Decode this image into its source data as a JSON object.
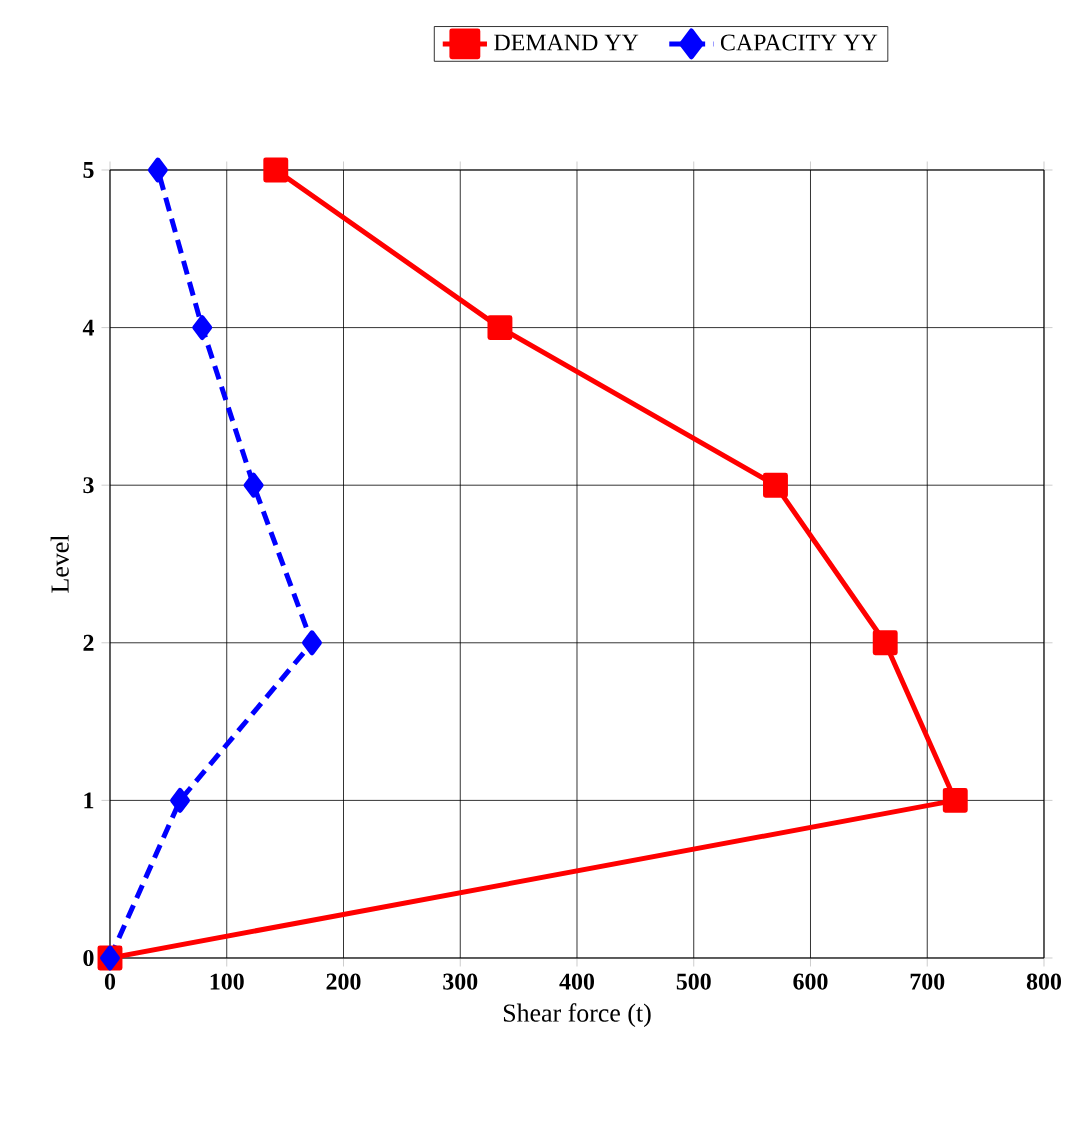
{
  "chart_data": {
    "type": "line",
    "xlabel": "Shear force (t)",
    "ylabel": "Level",
    "xlim": [
      0,
      800
    ],
    "xticks": [
      0,
      100,
      200,
      300,
      400,
      500,
      600,
      700,
      800
    ],
    "ylim": [
      0,
      5
    ],
    "yticks": [
      0,
      1,
      2,
      3,
      4,
      5
    ],
    "grid": true,
    "legend": "top",
    "series": [
      {
        "name": "DEMAND YY",
        "color": "#ff0000",
        "marker": "square",
        "line_style": "solid",
        "x": [
          0,
          724,
          664,
          570,
          334,
          142
        ],
        "values": [
          0,
          1,
          2,
          3,
          4,
          5
        ]
      },
      {
        "name": "CAPACITY YY",
        "color": "#0000ff",
        "marker": "diamond",
        "line_style": "dashed",
        "x": [
          0,
          60,
          173,
          123,
          79,
          41
        ],
        "values": [
          0,
          1,
          2,
          3,
          4,
          5
        ]
      }
    ]
  }
}
